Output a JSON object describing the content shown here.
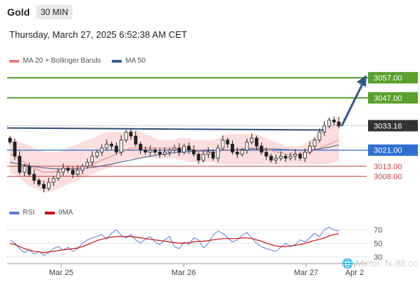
{
  "header": {
    "symbol": "Gold",
    "timeframe": "30 MIN",
    "timestamp": "Thursday, March 27, 2025 6:52:38 AM CET"
  },
  "colors": {
    "ma20": "#e87e7e",
    "band": "#fbd3d3",
    "ma50": "#3b5f8f",
    "green": "#5aa02c",
    "blue": "#2e6fd1",
    "red": "#d34040",
    "rsi": "#5b7fd8",
    "rsi_ma": "#cc1111"
  },
  "chart_data": [
    {
      "type": "candlestick",
      "title": "",
      "legend": [
        {
          "name": "MA 20 + Bollinger Bands",
          "color": "#e87e7e"
        },
        {
          "name": "MA 50",
          "color": "#3b5f8f"
        }
      ],
      "legend_position": "top-left",
      "x_ticks": [
        "Mar 25",
        "Mar 26",
        "Mar 27",
        "Apr 2"
      ],
      "price_levels": [
        {
          "label": "3057.00",
          "value": 3057.0,
          "style": "resistance",
          "color": "#5aa02c"
        },
        {
          "label": "3047.00",
          "value": 3047.0,
          "style": "resistance",
          "color": "#5aa02c"
        },
        {
          "label": "3033.16",
          "value": 3033.16,
          "style": "current-price",
          "color": "#333333"
        },
        {
          "label": "3021.00",
          "value": 3021.0,
          "style": "pivot",
          "color": "#2e6fd1"
        },
        {
          "label": "3013.00",
          "value": 3013.0,
          "style": "support",
          "color": "#d34040"
        },
        {
          "label": "3008.00",
          "value": 3008.0,
          "style": "support",
          "color": "#d34040"
        }
      ],
      "close_series": [
        3025,
        3018,
        3010,
        3013,
        3009,
        3006,
        3004,
        3002,
        3005,
        3007,
        3010,
        3012,
        3011,
        3009,
        3011,
        3013,
        3015,
        3018,
        3020,
        3022,
        3024,
        3023,
        3020,
        3026,
        3030,
        3028,
        3024,
        3021,
        3020,
        3021,
        3020,
        3019,
        3020,
        3021,
        3022,
        3020,
        3023,
        3021,
        3019,
        3016,
        3019,
        3020,
        3017,
        3022,
        3026,
        3024,
        3020,
        3019,
        3021,
        3025,
        3027,
        3023,
        3020,
        3018,
        3016,
        3017,
        3018,
        3017,
        3018,
        3019,
        3017,
        3020,
        3023,
        3026,
        3030,
        3033,
        3036,
        3035,
        3033
      ],
      "ma20": [
        3019,
        3018,
        3016,
        3015,
        3013,
        3012,
        3011,
        3010,
        3010,
        3010,
        3011,
        3012,
        3012,
        3012,
        3012,
        3013,
        3013,
        3014,
        3015,
        3016,
        3017,
        3018,
        3019,
        3020,
        3021,
        3022,
        3022,
        3022,
        3022,
        3022,
        3022,
        3022,
        3022,
        3022,
        3022,
        3022,
        3022,
        3022,
        3021,
        3021,
        3021,
        3020,
        3020,
        3020,
        3021,
        3021,
        3021,
        3021,
        3021,
        3022,
        3022,
        3022,
        3022,
        3021,
        3021,
        3020,
        3020,
        3019,
        3019,
        3019,
        3019,
        3019,
        3020,
        3021,
        3022,
        3023,
        3024,
        3025,
        3026
      ],
      "ma50": [
        3015,
        3014.5,
        3014,
        3013.6,
        3013.2,
        3012.8,
        3012.5,
        3012.2,
        3012,
        3011.8,
        3011.7,
        3011.6,
        3011.6,
        3011.6,
        3011.7,
        3011.9,
        3012.1,
        3012.4,
        3012.8,
        3013.2,
        3013.6,
        3014.1,
        3014.6,
        3015.1,
        3015.6,
        3016.1,
        3016.6,
        3017.1,
        3017.6,
        3018,
        3018.4,
        3018.8,
        3019.1,
        3019.4,
        3019.7,
        3019.9,
        3020.1,
        3020.3,
        3020.4,
        3020.5,
        3020.6,
        3020.7,
        3020.8,
        3020.9,
        3021,
        3021.1,
        3021.2,
        3021.3,
        3021.4,
        3021.5,
        3021.6,
        3021.6,
        3021.6,
        3021.6,
        3021.6,
        3021.5,
        3021.4,
        3021.3,
        3021.2,
        3021.1,
        3021,
        3021,
        3021.1,
        3021.3,
        3021.6,
        3022,
        3022.5,
        3023,
        3023.6
      ],
      "bollinger_upper": [
        3027,
        3026,
        3025,
        3024,
        3023,
        3022,
        3021,
        3020,
        3020,
        3020,
        3020,
        3021,
        3022,
        3023,
        3024,
        3025,
        3026,
        3027,
        3028,
        3029,
        3030,
        3030,
        3030,
        3030,
        3030,
        3031,
        3031,
        3030,
        3029,
        3028,
        3027,
        3026,
        3026,
        3026,
        3026,
        3027,
        3027,
        3027,
        3026,
        3026,
        3026,
        3026,
        3026,
        3027,
        3028,
        3029,
        3029,
        3029,
        3029,
        3029,
        3029,
        3029,
        3028,
        3027,
        3026,
        3025,
        3024,
        3023,
        3023,
        3023,
        3023,
        3024,
        3026,
        3028,
        3030,
        3032,
        3034,
        3036,
        3038
      ],
      "bollinger_lower": [
        3010,
        3009,
        3007,
        3005,
        3003,
        3002,
        3001,
        3000,
        3000,
        3001,
        3002,
        3003,
        3004,
        3005,
        3006,
        3007,
        3008,
        3009,
        3010,
        3011,
        3012,
        3013,
        3014,
        3015,
        3016,
        3017,
        3017,
        3017,
        3017,
        3017,
        3017,
        3017,
        3017,
        3017,
        3017,
        3016,
        3016,
        3015,
        3015,
        3015,
        3015,
        3015,
        3015,
        3014,
        3014,
        3014,
        3014,
        3014,
        3014,
        3014,
        3014,
        3014,
        3014,
        3014,
        3014,
        3014,
        3014,
        3014,
        3014,
        3014,
        3014,
        3014,
        3014,
        3014,
        3014,
        3014,
        3014,
        3015,
        3016
      ],
      "trendline": {
        "from": 3032,
        "to": 3031
      },
      "projection": {
        "from": 3033,
        "to": 3057
      },
      "ylim": [
        3000,
        3062
      ]
    },
    {
      "type": "line",
      "title": "",
      "legend": [
        {
          "name": "RSI",
          "color": "#5b7fd8"
        },
        {
          "name": "9MA",
          "color": "#cc1111"
        }
      ],
      "y_ticks": [
        "70",
        "50",
        "30"
      ],
      "ylim": [
        25,
        78
      ],
      "rsi": [
        55,
        50,
        42,
        36,
        40,
        34,
        38,
        32,
        36,
        42,
        45,
        40,
        44,
        38,
        42,
        50,
        55,
        58,
        60,
        63,
        56,
        65,
        70,
        62,
        58,
        63,
        55,
        50,
        56,
        60,
        52,
        48,
        55,
        60,
        45,
        42,
        52,
        48,
        58,
        55,
        43,
        50,
        62,
        68,
        65,
        58,
        52,
        55,
        62,
        66,
        58,
        50,
        45,
        42,
        40,
        38,
        44,
        50,
        45,
        48,
        55,
        52,
        58,
        65,
        60,
        70,
        74,
        70,
        68
      ],
      "rsi_ma": [
        50,
        48,
        45,
        42,
        40,
        38,
        37,
        36,
        37,
        38,
        39,
        40,
        41,
        42,
        43,
        45,
        48,
        51,
        54,
        56,
        58,
        59,
        60,
        60,
        60,
        60,
        59,
        58,
        57,
        56,
        55,
        54,
        53,
        52,
        51,
        50,
        50,
        51,
        52,
        53,
        53,
        54,
        55,
        56,
        57,
        57,
        57,
        57,
        58,
        58,
        57,
        55,
        53,
        50,
        48,
        46,
        45,
        45,
        46,
        47,
        48,
        50,
        52,
        54,
        56,
        58,
        61,
        63,
        64
      ]
    }
  ],
  "watermark": "🌐 Mirror: fx-88.cc"
}
